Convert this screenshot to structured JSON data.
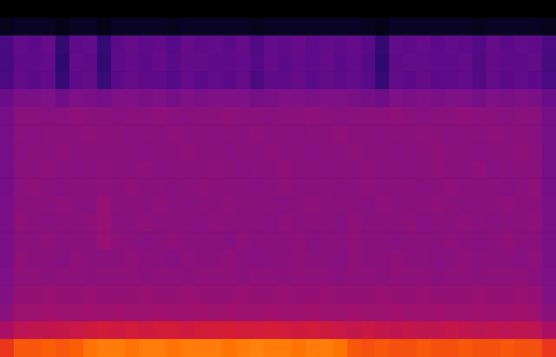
{
  "chart_data": {
    "type": "heatmap",
    "tick_labels": false,
    "grid": false,
    "value_range": [
      -120,
      -20
    ],
    "values": [
      [
        -120,
        -120,
        -120,
        -120,
        -120,
        -120,
        -120,
        -120,
        -120,
        -120,
        -120,
        -120,
        -120,
        -120,
        -120,
        -120,
        -120,
        -120,
        -120,
        -120,
        -120,
        -120,
        -120,
        -120,
        -120,
        -120,
        -120,
        -120,
        -120,
        -120,
        -120,
        -120,
        -120,
        -120,
        -120,
        -120,
        -120,
        -120,
        -120,
        -120
      ],
      [
        -114,
        -112,
        -112,
        -112,
        -115,
        -112,
        -112,
        -115,
        -112,
        -112,
        -112,
        -112,
        -113,
        -112,
        -112,
        -112,
        -112,
        -112,
        -113,
        -112,
        -112,
        -112,
        -112,
        -112,
        -112,
        -112,
        -113,
        -115,
        -112,
        -112,
        -112,
        -112,
        -112,
        -112,
        -113,
        -112,
        -112,
        -112,
        -112,
        -114
      ],
      [
        -90,
        -84,
        -86,
        -83,
        -96,
        -85,
        -84,
        -95,
        -86,
        -83,
        -85,
        -84,
        -88,
        -83,
        -85,
        -84,
        -86,
        -83,
        -89,
        -84,
        -85,
        -83,
        -86,
        -84,
        -85,
        -83,
        -87,
        -96,
        -84,
        -85,
        -83,
        -86,
        -84,
        -85,
        -88,
        -83,
        -86,
        -84,
        -85,
        -90
      ],
      [
        -91,
        -85,
        -85,
        -84,
        -97,
        -84,
        -85,
        -96,
        -85,
        -84,
        -86,
        -83,
        -87,
        -84,
        -84,
        -85,
        -85,
        -84,
        -88,
        -83,
        -86,
        -84,
        -85,
        -83,
        -86,
        -84,
        -88,
        -97,
        -85,
        -84,
        -84,
        -85,
        -85,
        -84,
        -89,
        -84,
        -85,
        -85,
        -84,
        -91
      ],
      [
        -90,
        -84,
        -86,
        -84,
        -95,
        -85,
        -84,
        -94,
        -86,
        -83,
        -85,
        -85,
        -88,
        -83,
        -86,
        -84,
        -86,
        -83,
        -90,
        -85,
        -85,
        -83,
        -87,
        -84,
        -85,
        -84,
        -87,
        -95,
        -84,
        -86,
        -83,
        -86,
        -85,
        -84,
        -88,
        -83,
        -86,
        -84,
        -86,
        -90
      ],
      [
        -82,
        -77,
        -77,
        -76,
        -80,
        -76,
        -77,
        -79,
        -76,
        -76,
        -77,
        -76,
        -78,
        -76,
        -77,
        -76,
        -76,
        -76,
        -78,
        -77,
        -76,
        -76,
        -77,
        -76,
        -76,
        -77,
        -78,
        -80,
        -76,
        -77,
        -76,
        -77,
        -76,
        -76,
        -78,
        -76,
        -77,
        -76,
        -77,
        -82
      ],
      [
        -78,
        -73,
        -73,
        -74,
        -73,
        -72,
        -73,
        -73,
        -74,
        -73,
        -73,
        -72,
        -73,
        -74,
        -73,
        -73,
        -72,
        -73,
        -73,
        -74,
        -73,
        -73,
        -72,
        -73,
        -74,
        -73,
        -73,
        -73,
        -72,
        -73,
        -74,
        -73,
        -73,
        -72,
        -73,
        -73,
        -74,
        -73,
        -73,
        -78
      ],
      [
        -78,
        -73,
        -74,
        -73,
        -73,
        -73,
        -72,
        -73,
        -73,
        -74,
        -73,
        -73,
        -72,
        -73,
        -73,
        -74,
        -73,
        -73,
        -72,
        -73,
        -73,
        -74,
        -73,
        -73,
        -72,
        -73,
        -73,
        -74,
        -73,
        -73,
        -72,
        -73,
        -74,
        -73,
        -73,
        -72,
        -73,
        -73,
        -74,
        -78
      ],
      [
        -78,
        -74,
        -73,
        -73,
        -72,
        -73,
        -73,
        -73,
        -73,
        -73,
        -74,
        -73,
        -73,
        -72,
        -73,
        -73,
        -74,
        -73,
        -73,
        -72,
        -73,
        -73,
        -74,
        -73,
        -73,
        -72,
        -73,
        -73,
        -74,
        -73,
        -73,
        -72,
        -73,
        -73,
        -74,
        -73,
        -73,
        -72,
        -73,
        -78
      ],
      [
        -78,
        -73,
        -73,
        -72,
        -73,
        -74,
        -73,
        -72,
        -73,
        -73,
        -72,
        -74,
        -73,
        -73,
        -73,
        -72,
        -73,
        -74,
        -73,
        -73,
        -72,
        -73,
        -73,
        -74,
        -73,
        -73,
        -72,
        -73,
        -73,
        -74,
        -73,
        -72,
        -73,
        -73,
        -72,
        -74,
        -73,
        -73,
        -73,
        -78
      ],
      [
        -78,
        -73,
        -72,
        -73,
        -74,
        -73,
        -73,
        -72,
        -73,
        -72,
        -73,
        -73,
        -74,
        -73,
        -72,
        -73,
        -73,
        -73,
        -74,
        -73,
        -72,
        -73,
        -73,
        -73,
        -74,
        -73,
        -72,
        -73,
        -73,
        -73,
        -74,
        -73,
        -72,
        -73,
        -73,
        -73,
        -74,
        -73,
        -72,
        -78
      ],
      [
        -77,
        -73,
        -73,
        -73,
        -72,
        -73,
        -74,
        -70,
        -73,
        -73,
        -73,
        -72,
        -73,
        -74,
        -73,
        -73,
        -72,
        -73,
        -73,
        -73,
        -74,
        -73,
        -72,
        -73,
        -73,
        -73,
        -74,
        -72,
        -73,
        -73,
        -73,
        -72,
        -73,
        -74,
        -73,
        -73,
        -72,
        -73,
        -73,
        -77
      ],
      [
        -77,
        -72,
        -73,
        -74,
        -73,
        -73,
        -72,
        -70,
        -74,
        -73,
        -72,
        -73,
        -73,
        -73,
        -74,
        -72,
        -73,
        -73,
        -73,
        -74,
        -72,
        -73,
        -73,
        -73,
        -74,
        -72,
        -73,
        -73,
        -73,
        -72,
        -74,
        -73,
        -73,
        -72,
        -73,
        -74,
        -73,
        -73,
        -72,
        -77
      ],
      [
        -77,
        -73,
        -73,
        -72,
        -73,
        -73,
        -73,
        -70,
        -72,
        -73,
        -74,
        -73,
        -72,
        -73,
        -73,
        -73,
        -74,
        -72,
        -73,
        -73,
        -73,
        -72,
        -74,
        -73,
        -73,
        -72,
        -73,
        -73,
        -74,
        -73,
        -73,
        -73,
        -72,
        -73,
        -74,
        -73,
        -72,
        -73,
        -73,
        -77
      ],
      [
        -77,
        -72,
        -73,
        -73,
        -74,
        -72,
        -73,
        -73,
        -73,
        -72,
        -73,
        -73,
        -74,
        -72,
        -73,
        -73,
        -72,
        -73,
        -74,
        -73,
        -73,
        -72,
        -73,
        -73,
        -74,
        -72,
        -73,
        -73,
        -72,
        -73,
        -73,
        -74,
        -73,
        -72,
        -73,
        -73,
        -73,
        -74,
        -72,
        -77
      ],
      [
        -76,
        -72,
        -72,
        -73,
        -72,
        -72,
        -73,
        -72,
        -72,
        -72,
        -73,
        -72,
        -72,
        -73,
        -72,
        -72,
        -72,
        -73,
        -72,
        -72,
        -73,
        -72,
        -72,
        -72,
        -73,
        -72,
        -72,
        -73,
        -72,
        -72,
        -72,
        -73,
        -72,
        -72,
        -73,
        -72,
        -72,
        -72,
        -73,
        -76
      ],
      [
        -75,
        -71,
        -71,
        -70,
        -71,
        -71,
        -70,
        -71,
        -71,
        -71,
        -70,
        -71,
        -71,
        -70,
        -71,
        -71,
        -71,
        -70,
        -71,
        -71,
        -70,
        -71,
        -71,
        -70,
        -71,
        -71,
        -71,
        -70,
        -71,
        -71,
        -70,
        -71,
        -71,
        -71,
        -70,
        -71,
        -71,
        -70,
        -71,
        -75
      ],
      [
        -73,
        -69,
        -69,
        -68,
        -69,
        -69,
        -68,
        -69,
        -68,
        -69,
        -69,
        -68,
        -69,
        -69,
        -68,
        -69,
        -68,
        -69,
        -69,
        -68,
        -69,
        -69,
        -68,
        -69,
        -69,
        -68,
        -69,
        -69,
        -68,
        -69,
        -69,
        -68,
        -69,
        -69,
        -68,
        -69,
        -69,
        -68,
        -69,
        -73
      ],
      [
        -66,
        -62,
        -61,
        -61,
        -60,
        -59,
        -58,
        -57,
        -58,
        -57,
        -58,
        -57,
        -57,
        -58,
        -57,
        -57,
        -56,
        -57,
        -57,
        -56,
        -57,
        -58,
        -57,
        -58,
        -59,
        -60,
        -59,
        -60,
        -61,
        -60,
        -61,
        -61,
        -60,
        -61,
        -62,
        -61,
        -62,
        -61,
        -62,
        -66
      ],
      [
        -50,
        -45,
        -45,
        -44,
        -45,
        -44,
        -41,
        -40,
        -40,
        -41,
        -40,
        -40,
        -41,
        -40,
        -40,
        -40,
        -41,
        -40,
        -39,
        -40,
        -40,
        -41,
        -40,
        -40,
        -41,
        -45,
        -46,
        -45,
        -46,
        -46,
        -45,
        -46,
        -46,
        -45,
        -46,
        -46,
        -45,
        -46,
        -46,
        -50
      ]
    ]
  }
}
